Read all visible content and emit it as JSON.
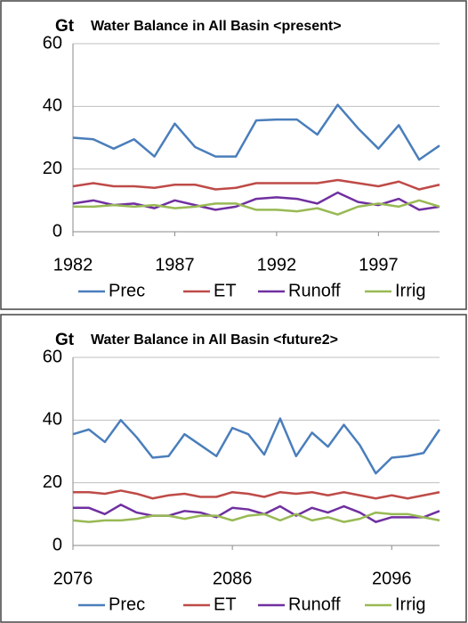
{
  "chart_data": [
    {
      "type": "line",
      "title": "Water Balance in All Basin  <present>",
      "y_label": "Gt",
      "x": [
        1982,
        1983,
        1984,
        1985,
        1986,
        1987,
        1988,
        1989,
        1990,
        1991,
        1992,
        1993,
        1994,
        1995,
        1996,
        1997,
        1998,
        1999,
        2000
      ],
      "xlim": [
        1982,
        2000
      ],
      "xticks": [
        1982,
        1987,
        1992,
        1997
      ],
      "ylim": [
        0,
        60
      ],
      "yticks": [
        0,
        20,
        40,
        60
      ],
      "grid": true,
      "series": [
        {
          "name": "Prec",
          "color": "#4a7ebb",
          "values": [
            30,
            29.5,
            26.5,
            29.5,
            24,
            34.5,
            27,
            24,
            24,
            35.5,
            35.8,
            35.8,
            31,
            40.5,
            33,
            26.5,
            34,
            23,
            27.5
          ]
        },
        {
          "name": "ET",
          "color": "#be4b48",
          "values": [
            14.5,
            15.5,
            14.5,
            14.5,
            14,
            15,
            15,
            13.5,
            14,
            15.5,
            15.5,
            15.5,
            15.5,
            16.5,
            15.5,
            14.5,
            16,
            13.5,
            15
          ]
        },
        {
          "name": "Runoff",
          "color": "#7030a0",
          "values": [
            9,
            10,
            8.5,
            9,
            7.5,
            10,
            8.5,
            7,
            8,
            10.5,
            11,
            10.5,
            9,
            12.5,
            9.5,
            8.5,
            10.5,
            7,
            8
          ]
        },
        {
          "name": "Irrig",
          "color": "#98b954",
          "values": [
            8,
            8,
            8.5,
            8,
            8.5,
            7.5,
            8,
            9,
            9,
            7,
            7,
            6.5,
            7.5,
            5.5,
            8,
            9,
            8,
            10,
            8
          ]
        }
      ]
    },
    {
      "type": "line",
      "title": "Water Balance in All Basin  <future2>",
      "y_label": "Gt",
      "x": [
        2076,
        2077,
        2078,
        2079,
        2080,
        2081,
        2082,
        2083,
        2084,
        2085,
        2086,
        2087,
        2088,
        2089,
        2090,
        2091,
        2092,
        2093,
        2094,
        2095,
        2096,
        2097,
        2098,
        2099
      ],
      "xlim": [
        2076,
        2099
      ],
      "xticks": [
        2076,
        2086,
        2096
      ],
      "ylim": [
        0,
        60
      ],
      "yticks": [
        0,
        20,
        40,
        60
      ],
      "grid": true,
      "series": [
        {
          "name": "Prec",
          "color": "#4a7ebb",
          "values": [
            35.5,
            37,
            33,
            40,
            34.5,
            28,
            28.5,
            35.5,
            32,
            28.5,
            37.5,
            35.5,
            29,
            40.5,
            28.5,
            36,
            31.5,
            38.5,
            32,
            23,
            28,
            28.5,
            29.5,
            37
          ]
        },
        {
          "name": "ET",
          "color": "#be4b48",
          "values": [
            17,
            17,
            16.5,
            17.5,
            16.5,
            15,
            16,
            16.5,
            15.5,
            15.5,
            17,
            16.5,
            15.5,
            17,
            16.5,
            17,
            16,
            17,
            16,
            15,
            16,
            15,
            16,
            17
          ]
        },
        {
          "name": "Runoff",
          "color": "#7030a0",
          "values": [
            12,
            12,
            10,
            13,
            10.5,
            9.5,
            9.5,
            11,
            10.5,
            9,
            12,
            11.5,
            10,
            12.5,
            9.5,
            12,
            10.5,
            12.5,
            10.5,
            7.5,
            9,
            9,
            9,
            11
          ]
        },
        {
          "name": "Irrig",
          "color": "#98b954",
          "values": [
            8,
            7.5,
            8,
            8,
            8.5,
            9.5,
            9.5,
            8.5,
            9.5,
            9.5,
            8,
            9.5,
            10,
            8,
            10,
            8,
            9,
            7.5,
            8.5,
            10.5,
            10,
            10,
            9,
            8
          ]
        }
      ]
    }
  ]
}
